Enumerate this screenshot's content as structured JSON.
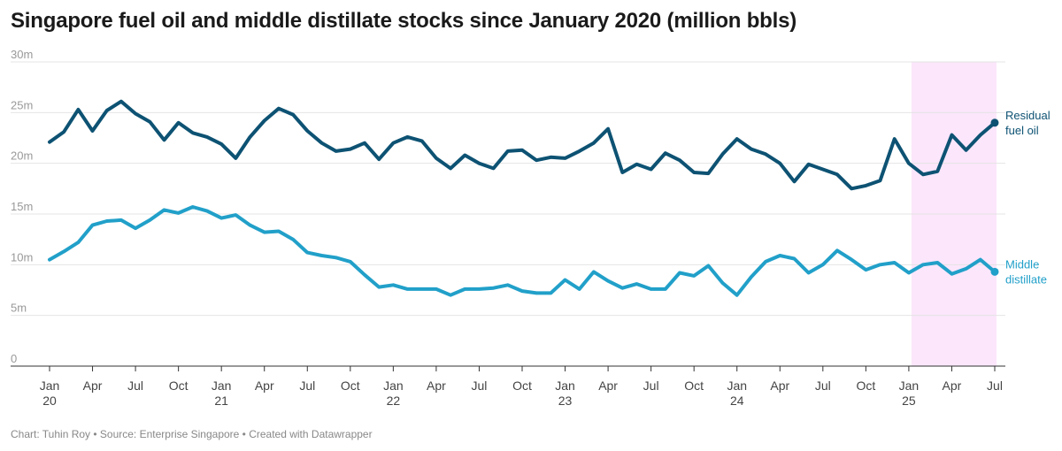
{
  "title": "Singapore fuel oil and middle distillate stocks since January 2020 (million bbls)",
  "footer": "Chart: Tuhin Roy • Source: Enterprise Singapore • Created with Datawrapper",
  "colors": {
    "residual": "#0d5273",
    "middle": "#21a0c9",
    "highlight": "#fbe6fb",
    "grid": "#e4e4e4",
    "axis": "#333333"
  },
  "chart_data": {
    "type": "line",
    "title": "Singapore fuel oil and middle distillate stocks since January 2020 (million bbls)",
    "xlabel": "",
    "ylabel": "",
    "ylim": [
      0,
      30
    ],
    "x_start": "2020-01",
    "x_end": "2025-07",
    "y_ticks": [
      {
        "value": 0,
        "label": "0"
      },
      {
        "value": 5,
        "label": "5m"
      },
      {
        "value": 10,
        "label": "10m"
      },
      {
        "value": 15,
        "label": "15m"
      },
      {
        "value": 20,
        "label": "20m"
      },
      {
        "value": 25,
        "label": "25m"
      },
      {
        "value": 30,
        "label": "30m"
      }
    ],
    "x_ticks": [
      {
        "month": "2020-01",
        "label": "Jan",
        "year": "20"
      },
      {
        "month": "2020-04",
        "label": "Apr",
        "year": ""
      },
      {
        "month": "2020-07",
        "label": "Jul",
        "year": ""
      },
      {
        "month": "2020-10",
        "label": "Oct",
        "year": ""
      },
      {
        "month": "2021-01",
        "label": "Jan",
        "year": "21"
      },
      {
        "month": "2021-04",
        "label": "Apr",
        "year": ""
      },
      {
        "month": "2021-07",
        "label": "Jul",
        "year": ""
      },
      {
        "month": "2021-10",
        "label": "Oct",
        "year": ""
      },
      {
        "month": "2022-01",
        "label": "Jan",
        "year": "22"
      },
      {
        "month": "2022-04",
        "label": "Apr",
        "year": ""
      },
      {
        "month": "2022-07",
        "label": "Jul",
        "year": ""
      },
      {
        "month": "2022-10",
        "label": "Oct",
        "year": ""
      },
      {
        "month": "2023-01",
        "label": "Jan",
        "year": "23"
      },
      {
        "month": "2023-04",
        "label": "Apr",
        "year": ""
      },
      {
        "month": "2023-07",
        "label": "Jul",
        "year": ""
      },
      {
        "month": "2023-10",
        "label": "Oct",
        "year": ""
      },
      {
        "month": "2024-01",
        "label": "Jan",
        "year": "24"
      },
      {
        "month": "2024-04",
        "label": "Apr",
        "year": ""
      },
      {
        "month": "2024-07",
        "label": "Jul",
        "year": ""
      },
      {
        "month": "2024-10",
        "label": "Oct",
        "year": ""
      },
      {
        "month": "2025-01",
        "label": "Jan",
        "year": "25"
      },
      {
        "month": "2025-04",
        "label": "Apr",
        "year": ""
      },
      {
        "month": "2025-07",
        "label": "Jul",
        "year": ""
      }
    ],
    "highlight_range": [
      "2025-01",
      "2025-07"
    ],
    "series": [
      {
        "name": "Residual fuel oil",
        "label_lines": [
          "Residual",
          "fuel oil"
        ],
        "values": [
          22.1,
          23.1,
          25.3,
          23.2,
          25.2,
          26.1,
          24.9,
          24.1,
          22.3,
          24.0,
          23.0,
          22.6,
          21.9,
          20.5,
          22.6,
          24.2,
          25.4,
          24.8,
          23.2,
          22.0,
          21.2,
          21.4,
          22.0,
          20.4,
          22.0,
          22.6,
          22.2,
          20.5,
          19.5,
          20.8,
          20.0,
          19.5,
          21.2,
          21.3,
          20.3,
          20.6,
          20.5,
          21.2,
          22.0,
          23.4,
          19.1,
          19.9,
          19.4,
          21.0,
          20.3,
          19.1,
          19.0,
          20.9,
          22.4,
          21.4,
          20.9,
          20.0,
          18.2,
          19.9,
          19.4,
          18.9,
          17.5,
          17.8,
          18.3,
          22.4,
          20.0,
          18.9,
          19.2,
          22.8,
          21.3,
          22.8,
          24.0
        ]
      },
      {
        "name": "Middle distillate",
        "label_lines": [
          "Middle",
          "distillate"
        ],
        "values": [
          10.5,
          11.3,
          12.2,
          13.9,
          14.3,
          14.4,
          13.6,
          14.4,
          15.4,
          15.1,
          15.7,
          15.3,
          14.6,
          14.9,
          13.9,
          13.2,
          13.3,
          12.5,
          11.2,
          10.9,
          10.7,
          10.3,
          9.0,
          7.8,
          8.0,
          7.6,
          7.6,
          7.6,
          7.0,
          7.6,
          7.6,
          7.7,
          8.0,
          7.4,
          7.2,
          7.2,
          8.5,
          7.6,
          9.3,
          8.4,
          7.7,
          8.1,
          7.6,
          7.6,
          9.2,
          8.9,
          9.9,
          8.2,
          7.0,
          8.8,
          10.3,
          10.9,
          10.6,
          9.2,
          10.0,
          11.4,
          10.5,
          9.5,
          10.0,
          10.2,
          9.2,
          10.0,
          10.2,
          9.1,
          9.6,
          10.5,
          9.3
        ]
      }
    ]
  }
}
